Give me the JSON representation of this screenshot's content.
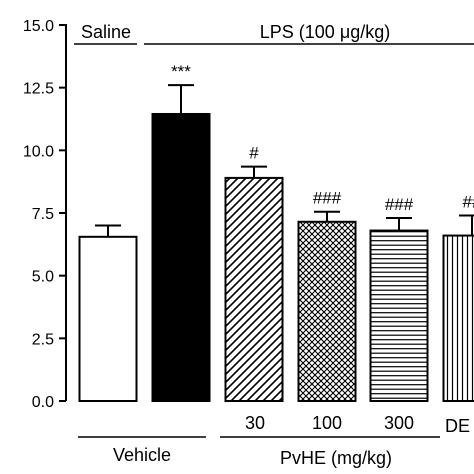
{
  "chart_data": {
    "type": "bar",
    "ylim": [
      0,
      15
    ],
    "yticks": [
      "0.0",
      "2.5",
      "5.0",
      "7.5",
      "10.0",
      "12.5",
      "15.0"
    ],
    "ytick_values": [
      0,
      2.5,
      5,
      7.5,
      10,
      12.5,
      15
    ],
    "bars": [
      {
        "value": 6.55,
        "error": 0.45,
        "sig": "",
        "fill": "white"
      },
      {
        "value": 11.45,
        "error": 1.15,
        "sig": "***",
        "fill": "black"
      },
      {
        "value": 8.9,
        "error": 0.45,
        "sig": "#",
        "fill": "diagonal"
      },
      {
        "value": 7.15,
        "error": 0.4,
        "sig": "###",
        "fill": "crosshatch"
      },
      {
        "value": 6.8,
        "error": 0.5,
        "sig": "###",
        "fill": "horizontal"
      },
      {
        "value": 6.6,
        "error": 0.8,
        "sig": "##",
        "fill": "vertical"
      }
    ],
    "top_groups": {
      "saline": "Saline",
      "lps": "LPS (100 μg/kg)"
    },
    "dose_labels": [
      "30",
      "100",
      "300",
      "DE"
    ],
    "bottom_groups": {
      "vehicle": "Vehicle",
      "pvhe": "PvHE (mg/kg)"
    }
  }
}
